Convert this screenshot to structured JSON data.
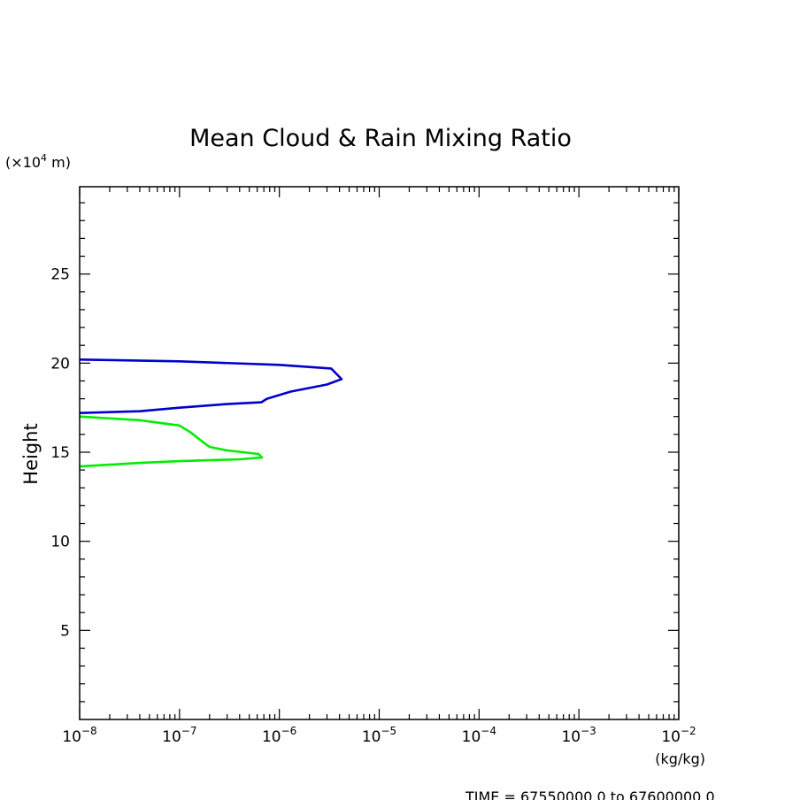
{
  "chart_data": {
    "type": "line",
    "title": "Mean Cloud & Rain Mixing Ratio",
    "ylabel": "Height",
    "y_unit": {
      "prefix": "(×10",
      "exp": "4",
      "suffix": " m)"
    },
    "x_unit": "(kg/kg)",
    "x_scale": "log",
    "xlim": [
      1e-08,
      0.01
    ],
    "ylim": [
      0,
      29.9
    ],
    "x_ticks": [
      {
        "value": 1e-08,
        "base": "10",
        "exp": "−8"
      },
      {
        "value": 1e-07,
        "base": "10",
        "exp": "−7"
      },
      {
        "value": 1e-06,
        "base": "10",
        "exp": "−6"
      },
      {
        "value": 1e-05,
        "base": "10",
        "exp": "−5"
      },
      {
        "value": 0.0001,
        "base": "10",
        "exp": "−4"
      },
      {
        "value": 0.001,
        "base": "10",
        "exp": "−3"
      },
      {
        "value": 0.01,
        "base": "10",
        "exp": "−2"
      }
    ],
    "y_ticks": [
      {
        "value": 5,
        "label": "5"
      },
      {
        "value": 10,
        "label": "10"
      },
      {
        "value": 15,
        "label": "15"
      },
      {
        "value": 20,
        "label": "20"
      },
      {
        "value": 25,
        "label": "25"
      }
    ],
    "series": [
      {
        "color": "#0000cc",
        "points": [
          [
            1e-08,
            20.2
          ],
          [
            1e-07,
            20.1
          ],
          [
            1e-06,
            19.9
          ],
          [
            3.3e-06,
            19.7
          ],
          [
            4.2e-06,
            19.1
          ],
          [
            3e-06,
            18.8
          ],
          [
            1.3e-06,
            18.4
          ],
          [
            7.5e-07,
            18.0
          ],
          [
            6.6e-07,
            17.8
          ],
          [
            3e-07,
            17.7
          ],
          [
            1e-07,
            17.5
          ],
          [
            4e-08,
            17.3
          ],
          [
            1e-08,
            17.2
          ]
        ]
      },
      {
        "color": "#00ee00",
        "points": [
          [
            1e-08,
            17.0
          ],
          [
            4e-08,
            16.8
          ],
          [
            1e-07,
            16.5
          ],
          [
            1.3e-07,
            16.1
          ],
          [
            1.6e-07,
            15.7
          ],
          [
            2e-07,
            15.3
          ],
          [
            3e-07,
            15.1
          ],
          [
            6.2e-07,
            14.9
          ],
          [
            6.7e-07,
            14.7
          ],
          [
            4e-07,
            14.6
          ],
          [
            1e-07,
            14.5
          ],
          [
            4e-08,
            14.4
          ],
          [
            1e-08,
            14.2
          ]
        ]
      }
    ]
  },
  "footer": {
    "time": "TIME = 67550000.0 to 67600000.0"
  }
}
